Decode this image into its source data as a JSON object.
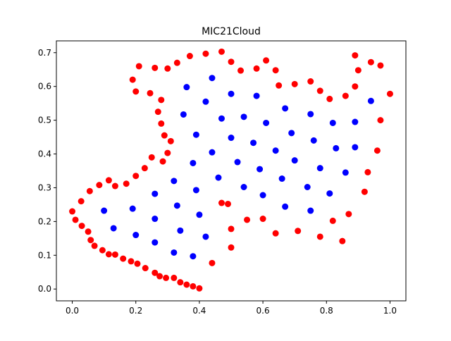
{
  "chart_data": {
    "type": "scatter",
    "title": "MIC21Cloud",
    "xlabel": "",
    "ylabel": "",
    "xlim": [
      -0.05,
      1.05
    ],
    "ylim": [
      -0.035,
      0.735
    ],
    "xticks": [
      0.0,
      0.2,
      0.4,
      0.6,
      0.8,
      1.0
    ],
    "xtick_labels": [
      "0.0",
      "0.2",
      "0.4",
      "0.6",
      "0.8",
      "1.0"
    ],
    "yticks": [
      0.0,
      0.1,
      0.2,
      0.3,
      0.4,
      0.5,
      0.6,
      0.7
    ],
    "ytick_labels": [
      "0.0",
      "0.1",
      "0.2",
      "0.3",
      "0.4",
      "0.5",
      "0.6",
      "0.7"
    ],
    "grid": false,
    "legend": "none",
    "series": [
      {
        "color": "#ff0000",
        "points": [
          [
            0.0,
            0.23
          ],
          [
            0.01,
            0.205
          ],
          [
            0.028,
            0.26
          ],
          [
            0.03,
            0.187
          ],
          [
            0.05,
            0.17
          ],
          [
            0.055,
            0.29
          ],
          [
            0.058,
            0.145
          ],
          [
            0.07,
            0.128
          ],
          [
            0.085,
            0.308
          ],
          [
            0.095,
            0.115
          ],
          [
            0.115,
            0.322
          ],
          [
            0.115,
            0.103
          ],
          [
            0.135,
            0.305
          ],
          [
            0.135,
            0.102
          ],
          [
            0.16,
            0.09
          ],
          [
            0.17,
            0.312
          ],
          [
            0.185,
            0.082
          ],
          [
            0.2,
            0.335
          ],
          [
            0.205,
            0.075
          ],
          [
            0.228,
            0.358
          ],
          [
            0.23,
            0.062
          ],
          [
            0.25,
            0.39
          ],
          [
            0.26,
            0.048
          ],
          [
            0.275,
            0.038
          ],
          [
            0.285,
            0.378
          ],
          [
            0.295,
            0.033
          ],
          [
            0.3,
            0.403
          ],
          [
            0.31,
            0.438
          ],
          [
            0.32,
            0.033
          ],
          [
            0.34,
            0.02
          ],
          [
            0.36,
            0.013
          ],
          [
            0.38,
            0.008
          ],
          [
            0.4,
            0.002
          ],
          [
            0.29,
            0.455
          ],
          [
            0.28,
            0.49
          ],
          [
            0.27,
            0.525
          ],
          [
            0.28,
            0.56
          ],
          [
            0.245,
            0.58
          ],
          [
            0.2,
            0.585
          ],
          [
            0.19,
            0.62
          ],
          [
            0.21,
            0.66
          ],
          [
            0.26,
            0.655
          ],
          [
            0.3,
            0.653
          ],
          [
            0.33,
            0.67
          ],
          [
            0.37,
            0.69
          ],
          [
            0.42,
            0.697
          ],
          [
            0.47,
            0.703
          ],
          [
            0.5,
            0.673
          ],
          [
            0.53,
            0.647
          ],
          [
            0.58,
            0.653
          ],
          [
            0.61,
            0.677
          ],
          [
            0.64,
            0.648
          ],
          [
            0.65,
            0.603
          ],
          [
            0.7,
            0.607
          ],
          [
            0.75,
            0.615
          ],
          [
            0.78,
            0.587
          ],
          [
            0.81,
            0.563
          ],
          [
            0.86,
            0.572
          ],
          [
            0.89,
            0.6
          ],
          [
            0.89,
            0.692
          ],
          [
            0.9,
            0.648
          ],
          [
            0.94,
            0.672
          ],
          [
            0.97,
            0.662
          ],
          [
            1.0,
            0.578
          ],
          [
            0.97,
            0.5
          ],
          [
            0.96,
            0.41
          ],
          [
            0.93,
            0.346
          ],
          [
            0.92,
            0.288
          ],
          [
            0.87,
            0.222
          ],
          [
            0.85,
            0.142
          ],
          [
            0.82,
            0.202
          ],
          [
            0.78,
            0.155
          ],
          [
            0.71,
            0.172
          ],
          [
            0.64,
            0.165
          ],
          [
            0.6,
            0.208
          ],
          [
            0.55,
            0.205
          ],
          [
            0.5,
            0.178
          ],
          [
            0.5,
            0.123
          ],
          [
            0.49,
            0.252
          ],
          [
            0.47,
            0.255
          ],
          [
            0.44,
            0.077
          ]
        ]
      },
      {
        "color": "#0000ff",
        "points": [
          [
            0.1,
            0.232
          ],
          [
            0.13,
            0.18
          ],
          [
            0.19,
            0.238
          ],
          [
            0.2,
            0.16
          ],
          [
            0.26,
            0.282
          ],
          [
            0.26,
            0.208
          ],
          [
            0.26,
            0.138
          ],
          [
            0.32,
            0.108
          ],
          [
            0.32,
            0.32
          ],
          [
            0.33,
            0.247
          ],
          [
            0.34,
            0.173
          ],
          [
            0.38,
            0.097
          ],
          [
            0.38,
            0.373
          ],
          [
            0.39,
            0.293
          ],
          [
            0.4,
            0.22
          ],
          [
            0.42,
            0.155
          ],
          [
            0.39,
            0.457
          ],
          [
            0.35,
            0.517
          ],
          [
            0.36,
            0.598
          ],
          [
            0.42,
            0.555
          ],
          [
            0.44,
            0.625
          ],
          [
            0.47,
            0.505
          ],
          [
            0.44,
            0.405
          ],
          [
            0.46,
            0.33
          ],
          [
            0.5,
            0.578
          ],
          [
            0.5,
            0.448
          ],
          [
            0.52,
            0.376
          ],
          [
            0.54,
            0.302
          ],
          [
            0.54,
            0.51
          ],
          [
            0.57,
            0.433
          ],
          [
            0.58,
            0.572
          ],
          [
            0.59,
            0.355
          ],
          [
            0.6,
            0.278
          ],
          [
            0.61,
            0.492
          ],
          [
            0.64,
            0.41
          ],
          [
            0.66,
            0.327
          ],
          [
            0.67,
            0.244
          ],
          [
            0.67,
            0.535
          ],
          [
            0.69,
            0.462
          ],
          [
            0.7,
            0.381
          ],
          [
            0.74,
            0.302
          ],
          [
            0.75,
            0.518
          ],
          [
            0.75,
            0.232
          ],
          [
            0.76,
            0.44
          ],
          [
            0.78,
            0.358
          ],
          [
            0.82,
            0.492
          ],
          [
            0.81,
            0.283
          ],
          [
            0.83,
            0.417
          ],
          [
            0.86,
            0.345
          ],
          [
            0.89,
            0.495
          ],
          [
            0.89,
            0.42
          ],
          [
            0.94,
            0.557
          ]
        ]
      }
    ]
  }
}
